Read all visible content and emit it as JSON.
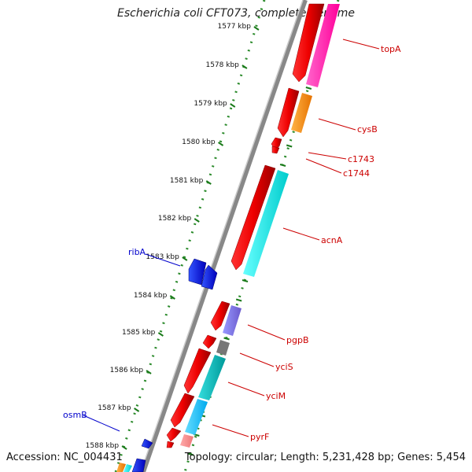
{
  "header": {
    "title": "Escherichia coli CFT073, complete genome"
  },
  "footer": {
    "accession": "Accession: NC_004431",
    "topology": "Topology: circular; Length: 5,231,428 bp; Genes: 5,454"
  },
  "colors": {
    "forward_label": "#cc0000",
    "reverse_label": "#0000cc",
    "backbone": "#888888",
    "ticks": "#1a7a1a"
  },
  "ruler": [
    "1577 kbp",
    "1578 kbp",
    "1579 kbp",
    "1580 kbp",
    "1581 kbp",
    "1582 kbp",
    "1583 kbp",
    "1584 kbp",
    "1585 kbp",
    "1586 kbp",
    "1587 kbp",
    "1588 kbp"
  ],
  "gene_labels": [
    {
      "name": "topA",
      "strand": "forward"
    },
    {
      "name": "cysB",
      "strand": "forward"
    },
    {
      "name": "c1743",
      "strand": "forward"
    },
    {
      "name": "c1744",
      "strand": "forward"
    },
    {
      "name": "acnA",
      "strand": "forward"
    },
    {
      "name": "pgpB",
      "strand": "forward"
    },
    {
      "name": "yciS",
      "strand": "forward"
    },
    {
      "name": "yciM",
      "strand": "forward"
    },
    {
      "name": "pyrF",
      "strand": "forward"
    },
    {
      "name": "ribA",
      "strand": "reverse"
    },
    {
      "name": "osmB",
      "strand": "reverse"
    }
  ]
}
